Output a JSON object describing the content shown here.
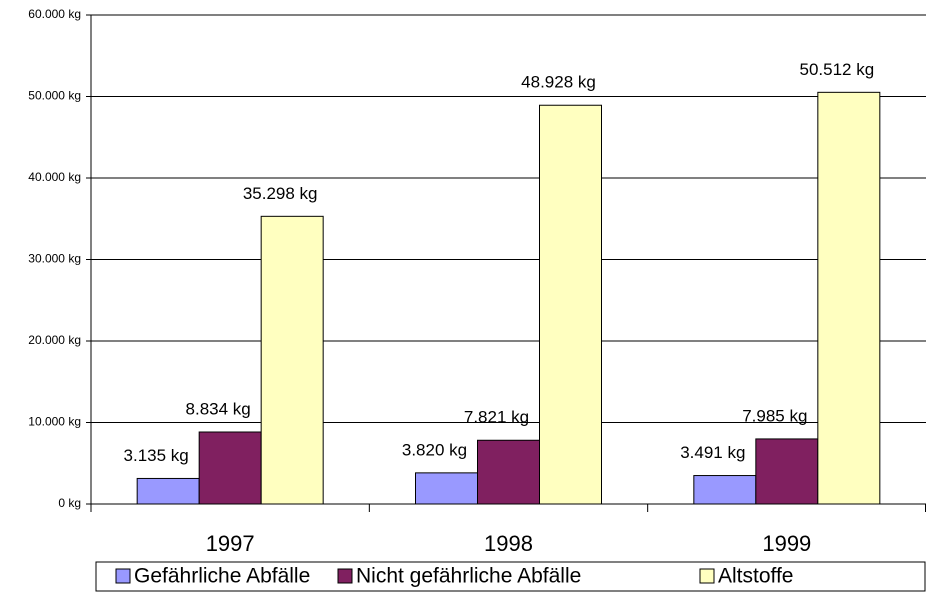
{
  "chart_data": {
    "type": "bar",
    "categories": [
      "1997",
      "1998",
      "1999"
    ],
    "series": [
      {
        "name": "Gefährliche Abfälle",
        "color": "#9999ff",
        "values": [
          3135,
          3820,
          3491
        ],
        "value_labels": [
          "3.135 kg",
          "3.820 kg",
          "3.491 kg"
        ]
      },
      {
        "name": "Nicht gefährliche Abfälle",
        "color": "#802060",
        "values": [
          8834,
          7821,
          7985
        ],
        "value_labels": [
          "8.834 kg",
          "7.821 kg",
          "7.985 kg"
        ]
      },
      {
        "name": "Altstoffe",
        "color": "#ffffc0",
        "values": [
          35298,
          48928,
          50512
        ],
        "value_labels": [
          "35.298 kg",
          "48.928 kg",
          "50.512 kg"
        ]
      }
    ],
    "ylim": [
      0,
      60000
    ],
    "yticks": [
      {
        "value": 0,
        "label": "0 kg"
      },
      {
        "value": 10000,
        "label": "10.000 kg"
      },
      {
        "value": 20000,
        "label": "20.000 kg"
      },
      {
        "value": 30000,
        "label": "30.000 kg"
      },
      {
        "value": 40000,
        "label": "40.000 kg"
      },
      {
        "value": 50000,
        "label": "50.000 kg"
      },
      {
        "value": 60000,
        "label": "60.000 kg"
      }
    ],
    "grid": true,
    "legend": "bottom"
  }
}
